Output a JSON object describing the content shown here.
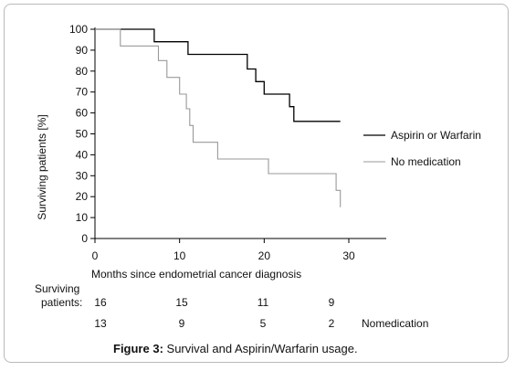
{
  "chart_data": {
    "type": "line",
    "subtype": "kaplan-meier-step",
    "xlabel": "Months since endometrial cancer diagnosis",
    "ylabel": "Surviving patients [%]",
    "xlim": [
      0,
      35
    ],
    "ylim": [
      0,
      100
    ],
    "xticks": [
      "0",
      "10",
      "20",
      "30"
    ],
    "yticks": [
      "0",
      "10",
      "20",
      "30",
      "40",
      "50",
      "60",
      "70",
      "80",
      "90",
      "100"
    ],
    "grid": false,
    "legend_position": "right",
    "series": [
      {
        "name": "Aspirin or Warfarin",
        "color": "#000000",
        "points": [
          [
            0,
            100
          ],
          [
            7,
            100
          ],
          [
            7,
            94
          ],
          [
            11,
            94
          ],
          [
            11,
            88
          ],
          [
            18,
            88
          ],
          [
            18,
            81
          ],
          [
            19,
            81
          ],
          [
            19,
            75
          ],
          [
            20,
            75
          ],
          [
            20,
            69
          ],
          [
            23,
            69
          ],
          [
            23,
            63
          ],
          [
            23.5,
            63
          ],
          [
            23.5,
            56
          ],
          [
            29,
            56
          ]
        ]
      },
      {
        "name": "No medication",
        "color": "#999999",
        "points": [
          [
            0,
            100
          ],
          [
            3,
            100
          ],
          [
            3,
            92
          ],
          [
            7.5,
            92
          ],
          [
            7.5,
            85
          ],
          [
            8.5,
            85
          ],
          [
            8.5,
            77
          ],
          [
            10,
            77
          ],
          [
            10,
            69
          ],
          [
            10.8,
            69
          ],
          [
            10.8,
            62
          ],
          [
            11.2,
            62
          ],
          [
            11.2,
            54
          ],
          [
            11.6,
            54
          ],
          [
            11.6,
            46
          ],
          [
            14.5,
            46
          ],
          [
            14.5,
            38
          ],
          [
            20.5,
            38
          ],
          [
            20.5,
            31
          ],
          [
            28.5,
            31
          ],
          [
            28.5,
            23
          ],
          [
            29,
            23
          ],
          [
            29,
            15
          ]
        ]
      }
    ],
    "risk_table": {
      "label_line1": "Surviving",
      "label_line2": "patients:",
      "rows": [
        {
          "values": [
            "16",
            "15",
            "11",
            "9"
          ],
          "label": ""
        },
        {
          "values": [
            "13",
            "9",
            "5",
            "2"
          ],
          "label": "Nomedication"
        }
      ]
    }
  },
  "caption": {
    "prefix": "Figure 3:",
    "text": " Survival and Aspirin/Warfarin usage."
  }
}
